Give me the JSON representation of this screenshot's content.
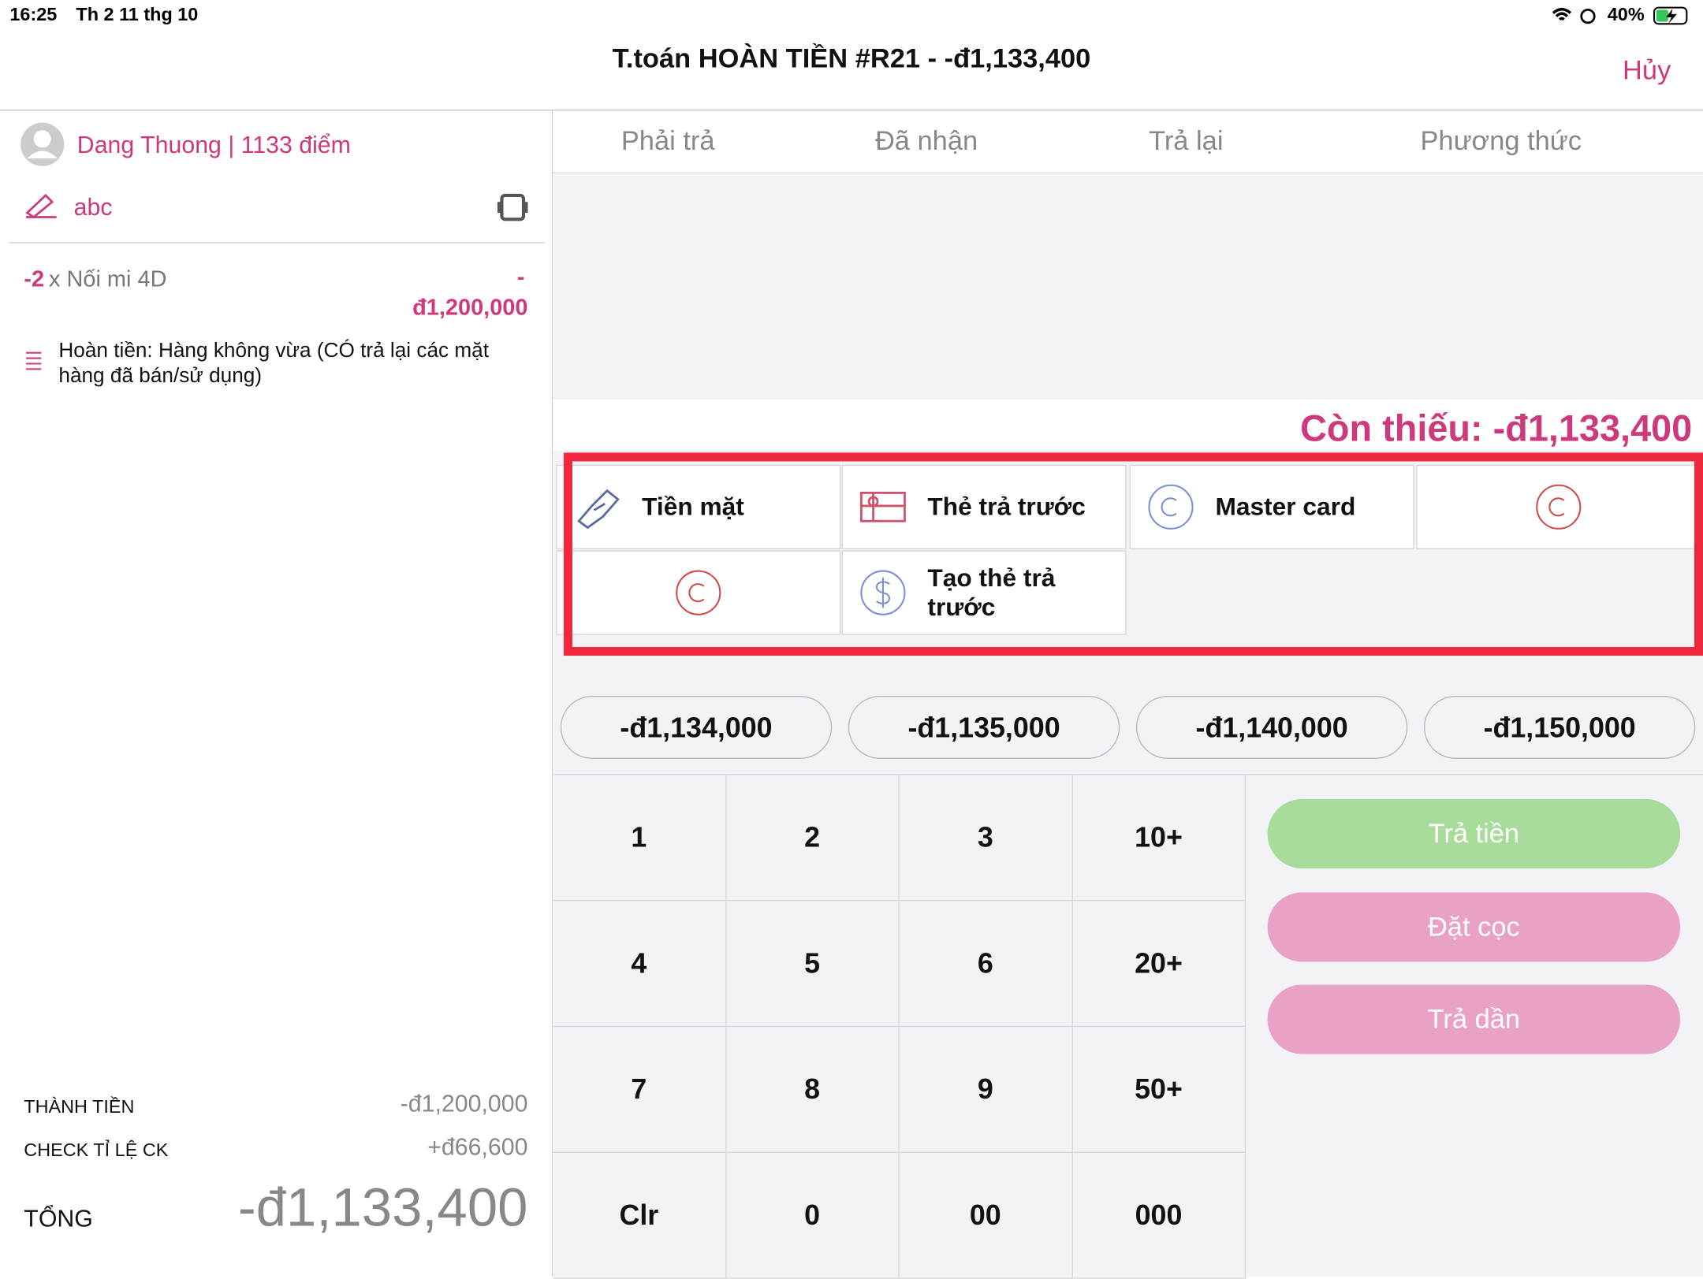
{
  "status_bar": {
    "time": "16:25",
    "date": "Th 2 11 thg 10",
    "battery": "40%"
  },
  "header": {
    "title": "T.toán HOÀN TIỀN #R21 - -đ1,133,400",
    "cancel": "Hủy"
  },
  "customer": {
    "name": "Dang Thuong | 1133 điểm",
    "note": "abc"
  },
  "item": {
    "qty": "-2",
    "name": "x Nối mi 4D",
    "price_sign": "-",
    "price": "đ1,200,000",
    "note": "Hoàn tiền: Hàng không vừa (CÓ trả lại các mặt hàng đã bán/sử dụng)"
  },
  "summary": [
    {
      "label": "THÀNH TIỀN",
      "value": "-đ1,200,000"
    },
    {
      "label": "CHECK TỈ LỆ CK",
      "value": "+đ66,600"
    }
  ],
  "total": {
    "label": "TỔNG",
    "value": "-đ1,133,400"
  },
  "tabs": [
    "Phải trả",
    "Đã nhận",
    "Trả lại",
    "Phương thức"
  ],
  "remaining": "Còn thiếu: -đ1,133,400",
  "methods": [
    "Tiền mặt",
    "Thẻ trả trước",
    "Master card",
    "Tạo thẻ trả trước"
  ],
  "quick_amounts": [
    "-đ1,134,000",
    "-đ1,135,000",
    "-đ1,140,000",
    "-đ1,150,000"
  ],
  "keypad": [
    "1",
    "2",
    "3",
    "10+",
    "4",
    "5",
    "6",
    "20+",
    "7",
    "8",
    "9",
    "50+",
    "Clr",
    "0",
    "00",
    "000"
  ],
  "actions": [
    "Trả tiền",
    "Đặt cọc",
    "Trả dần"
  ]
}
